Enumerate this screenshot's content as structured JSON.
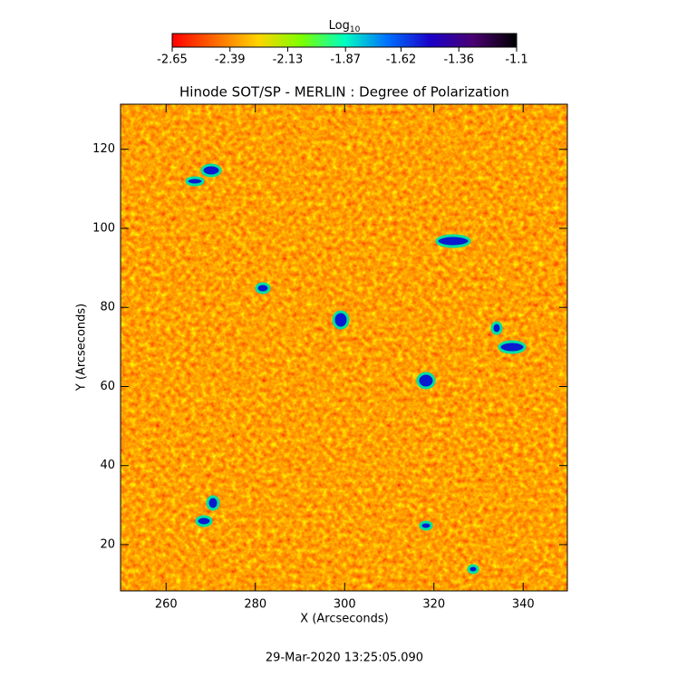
{
  "chart_data": {
    "type": "heatmap",
    "title": "Hinode SOT/SP - MERLIN : Degree of Polarization",
    "x_label": "X (Arcseconds)",
    "y_label": "Y (Arcseconds)",
    "xlim": [
      249.8,
      349.9
    ],
    "xticks": [
      260,
      280,
      300,
      320,
      340
    ],
    "ylim": [
      8.3,
      131.4
    ],
    "yticks": [
      20,
      40,
      60,
      80,
      100,
      120
    ],
    "colorbar": {
      "label": "Log",
      "label_subscript": "10",
      "lim": [
        -2.65,
        -1.1
      ],
      "ticks": [
        -2.65,
        -2.39,
        -2.13,
        -1.87,
        -1.62,
        -1.36,
        -1.1
      ],
      "colormap": [
        "#ff0000",
        "#ff6a00",
        "#ffd400",
        "#7cff00",
        "#00ffc0",
        "#0070ff",
        "#1a00c8",
        "#4a0070",
        "#000000"
      ]
    },
    "footer": "29-Mar-2020 13:25:05.090"
  }
}
